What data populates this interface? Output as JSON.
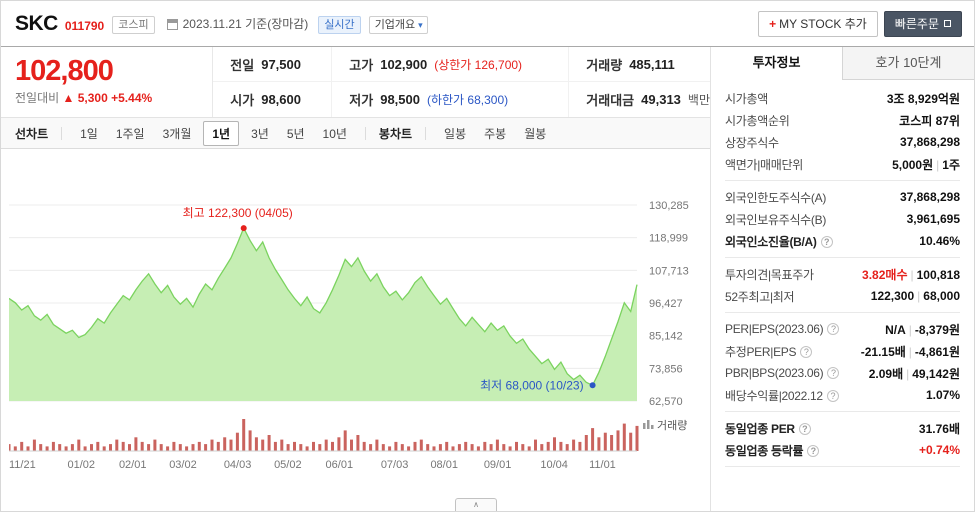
{
  "icons": {
    "chevron-down": "▾",
    "plus": "+",
    "collapse": "∧",
    "help": "?",
    "up-arrow": "▲"
  },
  "header": {
    "stock_name": "SKC",
    "stock_code": "011790",
    "market_badge": "코스피",
    "date_info": "2023.11.21 기준(장마감)",
    "realtime_badge": "실시간",
    "overview_label": "기업개요",
    "my_stock_label": "MY STOCK 추가",
    "quick_order_label": "빠른주문"
  },
  "price": {
    "current": "102,800",
    "change_label": "전일대비",
    "change_value": "5,300",
    "change_percent": "+5.44%"
  },
  "quote": {
    "prev_label": "전일",
    "prev": "97,500",
    "open_label": "시가",
    "open": "98,600",
    "high_label": "고가",
    "high": "102,900",
    "high_limit": "(상한가 126,700)",
    "low_label": "저가",
    "low": "98,500",
    "low_limit": "(하한가 68,300)",
    "volume_label": "거래량",
    "volume": "485,111",
    "value_label": "거래대금",
    "value": "49,313",
    "value_unit": "백만"
  },
  "chart_tabs": {
    "line_label": "선차트",
    "line_tabs": [
      "1일",
      "1주일",
      "3개월",
      "1년",
      "3년",
      "5년",
      "10년"
    ],
    "selected": "1년",
    "candle_label": "봉차트",
    "candle_tabs": [
      "일봉",
      "주봉",
      "월봉"
    ]
  },
  "chart_data": {
    "type": "area",
    "ylim": [
      62570,
      130285
    ],
    "yticks": [
      {
        "value": 130285,
        "label": "130,285"
      },
      {
        "value": 118999,
        "label": "118,999"
      },
      {
        "value": 107713,
        "label": "107,713"
      },
      {
        "value": 96427,
        "label": "96,427"
      },
      {
        "value": 85142,
        "label": "85,142"
      },
      {
        "value": 73856,
        "label": "73,856"
      },
      {
        "value": 62570,
        "label": "62,570"
      }
    ],
    "xticks": [
      {
        "label": "11/21",
        "pos": 0.0
      },
      {
        "label": "01/02",
        "pos": 0.115
      },
      {
        "label": "02/01",
        "pos": 0.197
      },
      {
        "label": "03/02",
        "pos": 0.277
      },
      {
        "label": "04/03",
        "pos": 0.364
      },
      {
        "label": "05/02",
        "pos": 0.444
      },
      {
        "label": "06/01",
        "pos": 0.526
      },
      {
        "label": "07/03",
        "pos": 0.614
      },
      {
        "label": "08/01",
        "pos": 0.693
      },
      {
        "label": "09/01",
        "pos": 0.778
      },
      {
        "label": "10/04",
        "pos": 0.868
      },
      {
        "label": "11/01",
        "pos": 0.945
      }
    ],
    "series": [
      {
        "name": "SKC",
        "values": [
          98000,
          96500,
          94000,
          95500,
          92000,
          90500,
          92500,
          89000,
          87500,
          86000,
          87000,
          84500,
          85500,
          88000,
          91000,
          89500,
          93000,
          96000,
          99000,
          97500,
          101000,
          104000,
          106500,
          103000,
          100000,
          102500,
          98500,
          96000,
          98000,
          95000,
          99500,
          103000,
          101000,
          105000,
          108500,
          112000,
          117000,
          122300,
          118000,
          114500,
          117500,
          112000,
          108000,
          104500,
          101000,
          98000,
          95500,
          98500,
          94500,
          93000,
          96500,
          101000,
          106000,
          111500,
          109000,
          112000,
          107500,
          104000,
          106500,
          102000,
          99000,
          100500,
          97500,
          100000,
          103500,
          105500,
          102000,
          99000,
          96000,
          98000,
          94500,
          91000,
          88500,
          91500,
          89000,
          86500,
          89500,
          87000,
          88500,
          85000,
          82500,
          84000,
          80500,
          78000,
          75500,
          77000,
          73500,
          76000,
          72000,
          70000,
          71500,
          69000,
          68000,
          72500,
          78000,
          84000,
          90000,
          96500,
          93500,
          102800
        ]
      }
    ],
    "annotations": {
      "high": {
        "text": "최고 122,300 (04/05)",
        "value": 122300,
        "date": "04/05"
      },
      "low": {
        "text": "최저 68,000 (10/23)",
        "value": 68000,
        "date": "10/23"
      }
    },
    "volume_label": "거래량",
    "volume_rel": [
      3,
      2,
      4,
      2,
      5,
      3,
      2,
      4,
      3,
      2,
      3,
      5,
      2,
      3,
      4,
      2,
      3,
      5,
      4,
      3,
      6,
      4,
      3,
      5,
      3,
      2,
      4,
      3,
      2,
      3,
      4,
      3,
      5,
      4,
      6,
      5,
      8,
      14,
      9,
      6,
      5,
      7,
      4,
      5,
      3,
      4,
      3,
      2,
      4,
      3,
      5,
      4,
      6,
      9,
      5,
      7,
      4,
      3,
      5,
      3,
      2,
      4,
      3,
      2,
      4,
      5,
      3,
      2,
      3,
      4,
      2,
      3,
      4,
      3,
      2,
      4,
      3,
      5,
      3,
      2,
      4,
      3,
      2,
      5,
      3,
      4,
      6,
      4,
      3,
      5,
      4,
      7,
      10,
      6,
      8,
      7,
      9,
      12,
      8,
      11
    ],
    "colors": {
      "line": "#7bd35f",
      "fill": "#c6eeb4",
      "high": "#e5211c",
      "low": "#2b57c5",
      "volume": "#c4524d"
    }
  },
  "panel": {
    "tabs": [
      "투자정보",
      "호가 10단계"
    ],
    "selected_tab": "투자정보",
    "rows": [
      {
        "label": "시가총액",
        "parts": [
          {
            "t": "3조 8,929억원",
            "c": ""
          }
        ]
      },
      {
        "label": "시가총액순위",
        "parts": [
          {
            "t": "코스피 87위",
            "c": ""
          }
        ]
      },
      {
        "label": "상장주식수",
        "parts": [
          {
            "t": "37,868,298",
            "c": ""
          }
        ]
      },
      {
        "label": "액면가|매매단위",
        "parts": [
          {
            "t": "5,000원",
            "c": ""
          },
          {
            "t": "|",
            "c": "sep"
          },
          {
            "t": "1주",
            "c": ""
          }
        ]
      },
      {
        "divider": true
      },
      {
        "label": "외국인한도주식수(A)",
        "parts": [
          {
            "t": "37,868,298",
            "c": ""
          }
        ]
      },
      {
        "label": "외국인보유주식수(B)",
        "parts": [
          {
            "t": "3,961,695",
            "c": ""
          }
        ]
      },
      {
        "label": "외국인소진율(B/A)",
        "labelStrong": true,
        "help": true,
        "parts": [
          {
            "t": "10.46%",
            "c": ""
          }
        ]
      },
      {
        "divider": true
      },
      {
        "label": "투자의견|목표주가",
        "parts": [
          {
            "t": "3.82매수",
            "c": "red"
          },
          {
            "t": "|",
            "c": "sep"
          },
          {
            "t": "100,818",
            "c": ""
          }
        ]
      },
      {
        "label": "52주최고|최저",
        "parts": [
          {
            "t": "122,300",
            "c": ""
          },
          {
            "t": "|",
            "c": "sep"
          },
          {
            "t": "68,000",
            "c": ""
          }
        ]
      },
      {
        "divider": true
      },
      {
        "label": "PER|EPS(2023.06)",
        "help": true,
        "parts": [
          {
            "t": "N/A",
            "c": ""
          },
          {
            "t": "|",
            "c": "sep"
          },
          {
            "t": "-8,379원",
            "c": ""
          }
        ]
      },
      {
        "label": "추정PER|EPS",
        "help": true,
        "parts": [
          {
            "t": "-21.15배",
            "c": ""
          },
          {
            "t": "|",
            "c": "sep"
          },
          {
            "t": "-4,861원",
            "c": ""
          }
        ]
      },
      {
        "label": "PBR|BPS(2023.06)",
        "help": true,
        "parts": [
          {
            "t": "2.09배",
            "c": ""
          },
          {
            "t": "|",
            "c": "sep"
          },
          {
            "t": "49,142원",
            "c": ""
          }
        ]
      },
      {
        "label": "배당수익률|2022.12",
        "help": true,
        "parts": [
          {
            "t": "1.07%",
            "c": ""
          }
        ]
      },
      {
        "divider": true
      },
      {
        "label": "동일업종 PER",
        "labelStrong": true,
        "help": true,
        "parts": [
          {
            "t": "31.76배",
            "c": ""
          }
        ]
      },
      {
        "label": "동일업종 등락률",
        "labelStrong": true,
        "help": true,
        "parts": [
          {
            "t": "+0.74%",
            "c": "red"
          }
        ]
      },
      {
        "divider": true
      }
    ]
  }
}
